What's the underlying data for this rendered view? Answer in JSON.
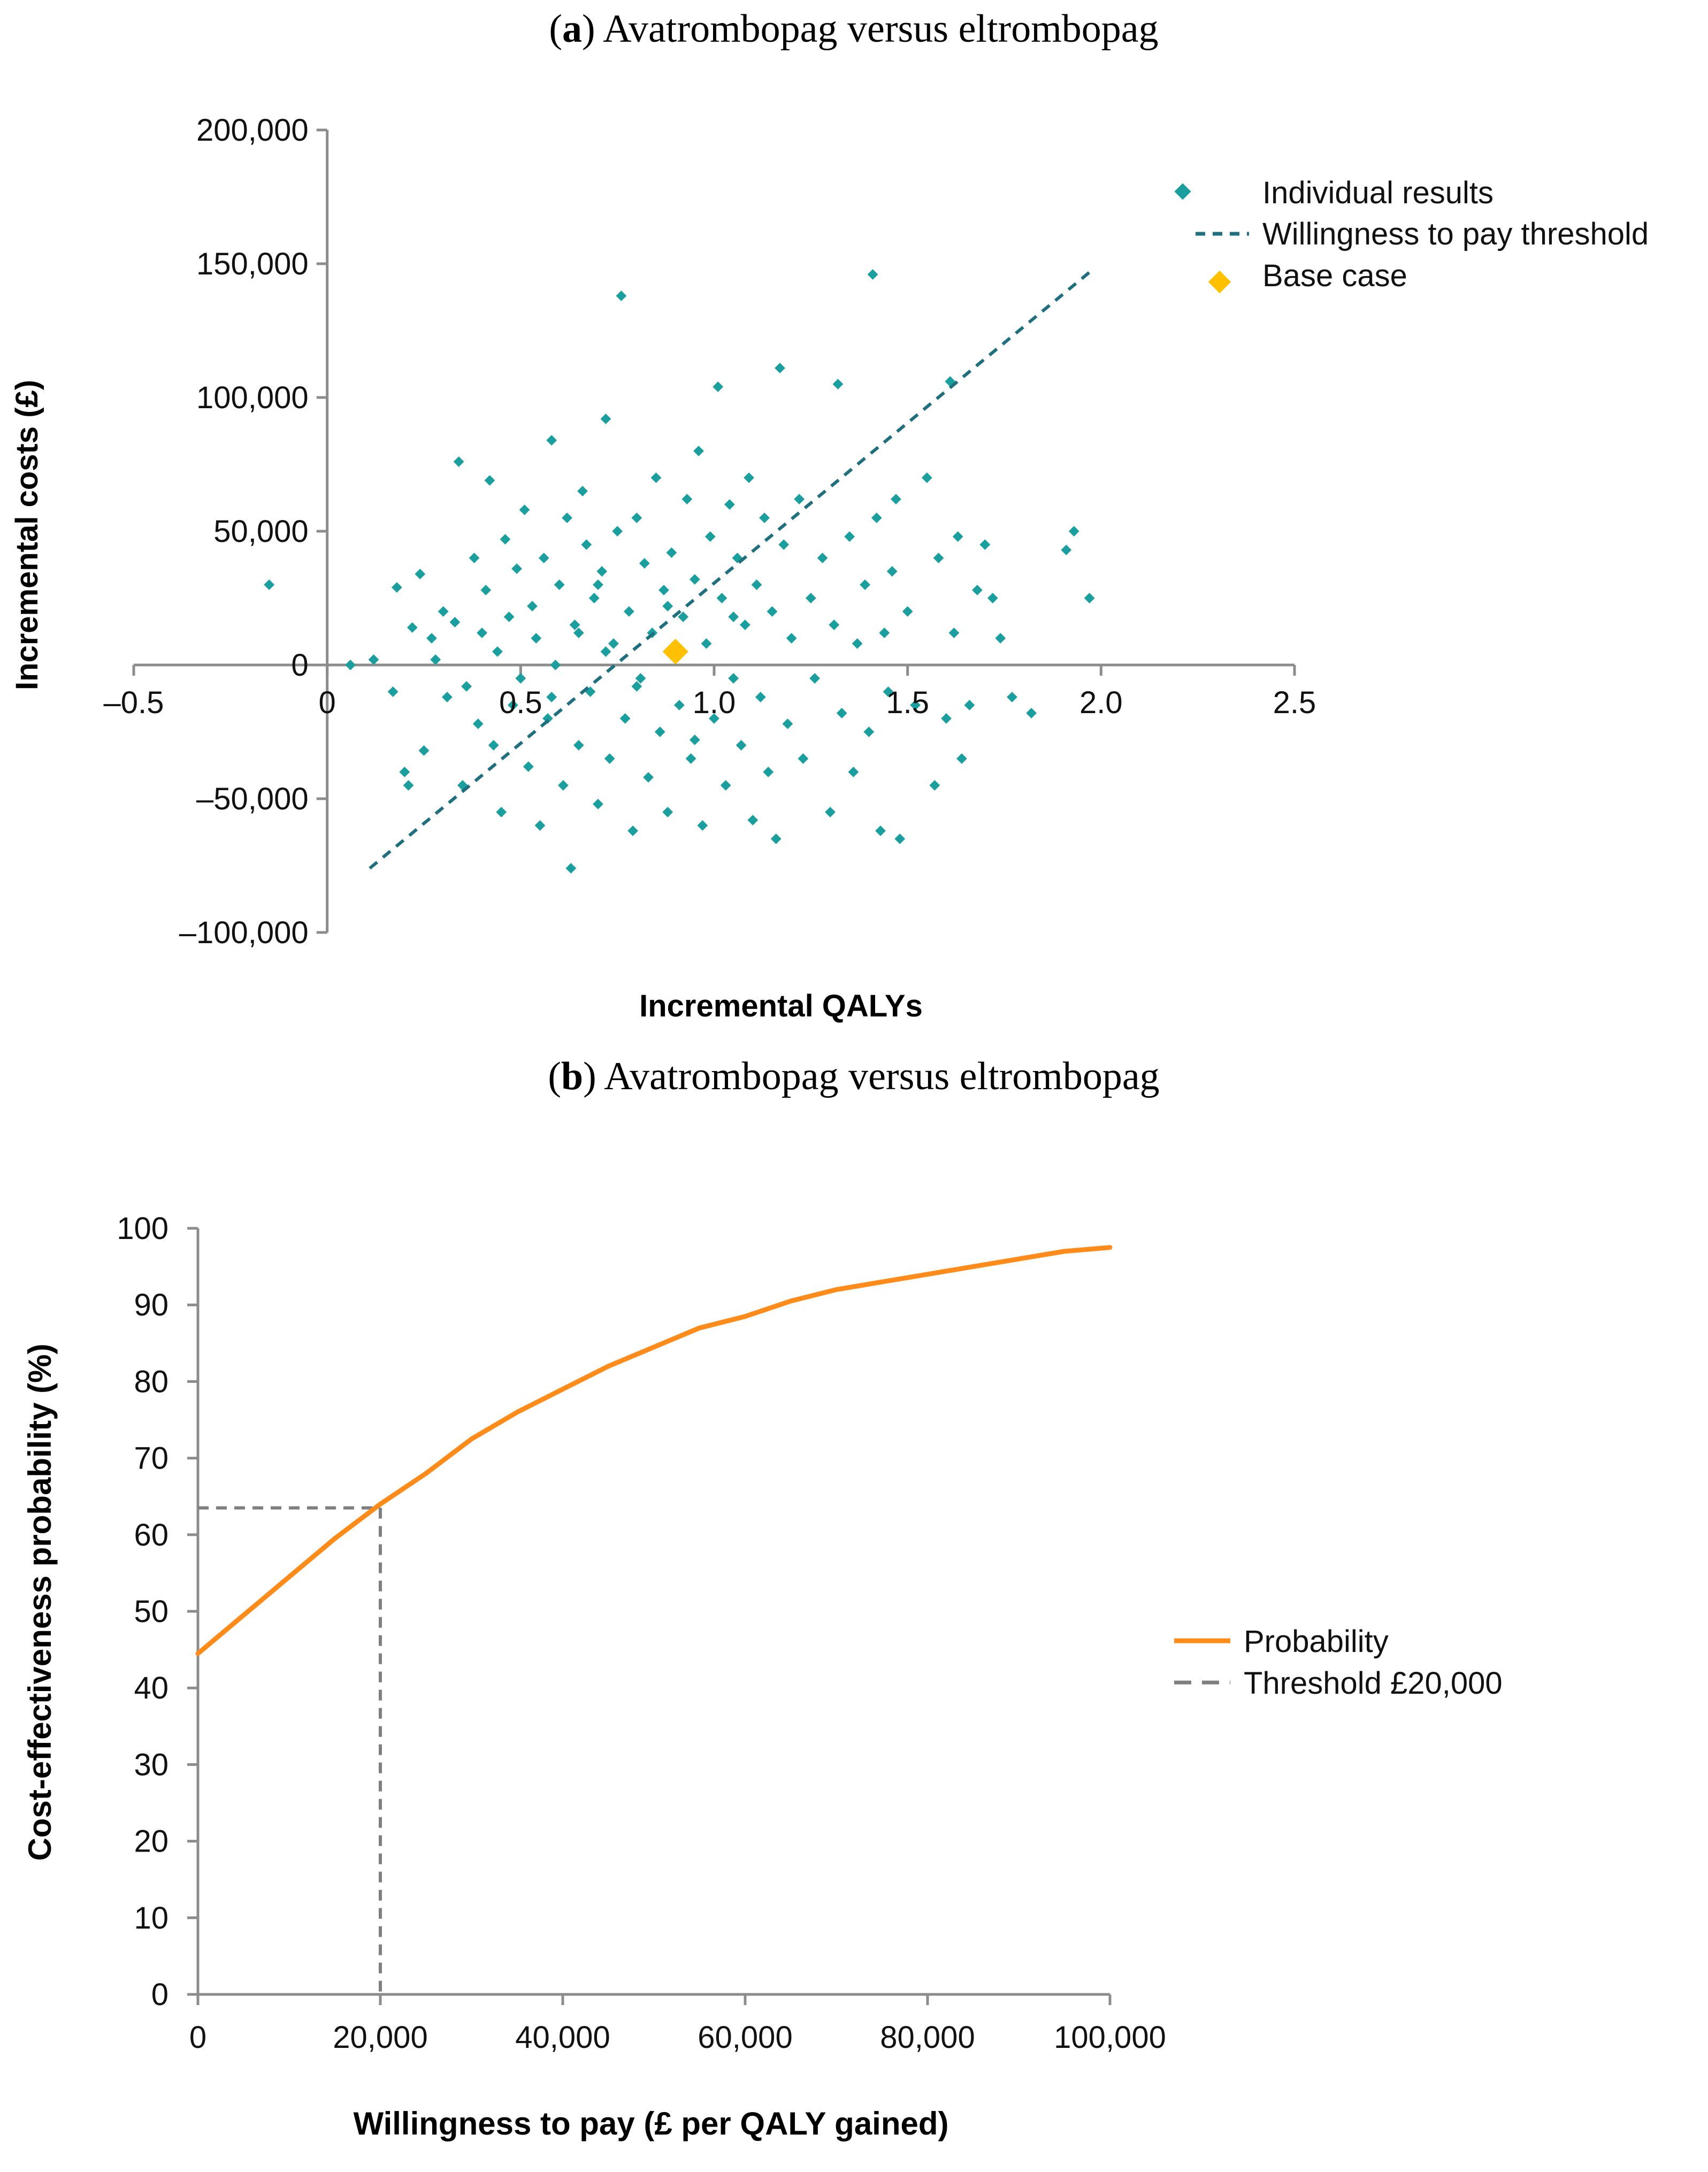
{
  "colors": {
    "scatter": "#1a9e9e",
    "wtp_line": "#1f6f7f",
    "base_case": "#ffc000",
    "probability": "#ff8c1a",
    "threshold": "#7f7f7f",
    "axis": "#8c8c8c"
  },
  "chart_data": [
    {
      "type": "scatter",
      "title_prefix": "(",
      "title_letter": "a",
      "title_rest": ") Avatrombopag versus eltrombopag",
      "xlabel": "Incremental QALYs",
      "ylabel": "Incremental costs (£)",
      "xlim": [
        -0.5,
        2.5
      ],
      "ylim": [
        -100000,
        200000
      ],
      "x_ticks": [
        {
          "value": -0.5,
          "label": "–0.5"
        },
        {
          "value": 0,
          "label": "0"
        },
        {
          "value": 0.5,
          "label": "0.5"
        },
        {
          "value": 1.0,
          "label": "1.0"
        },
        {
          "value": 1.5,
          "label": "1.5"
        },
        {
          "value": 2.0,
          "label": "2.0"
        },
        {
          "value": 2.5,
          "label": "2.5"
        }
      ],
      "y_ticks": [
        {
          "value": -100000,
          "label": "–100,000"
        },
        {
          "value": -50000,
          "label": "–50,000"
        },
        {
          "value": 0,
          "label": "0"
        },
        {
          "value": 50000,
          "label": "50,000"
        },
        {
          "value": 100000,
          "label": "100,000"
        },
        {
          "value": 150000,
          "label": "150,000"
        },
        {
          "value": 200000,
          "label": "200,000"
        }
      ],
      "legend_position": "top-right",
      "legend": [
        "Individual results",
        "Willingness to pay threshold",
        "Base case"
      ],
      "base_case": {
        "x": 0.9,
        "y": 5000
      },
      "wtp_line": {
        "x": [
          0.11,
          1.98
        ],
        "y": [
          -76000,
          148000
        ]
      },
      "points": [
        [
          -0.15,
          30000
        ],
        [
          0.06,
          0
        ],
        [
          0.12,
          2000
        ],
        [
          0.17,
          -10000
        ],
        [
          0.18,
          29000
        ],
        [
          0.2,
          -40000
        ],
        [
          0.21,
          -45000
        ],
        [
          0.22,
          14000
        ],
        [
          0.24,
          34000
        ],
        [
          0.25,
          -32000
        ],
        [
          0.27,
          10000
        ],
        [
          0.28,
          2000
        ],
        [
          0.3,
          20000
        ],
        [
          0.31,
          -12000
        ],
        [
          0.33,
          16000
        ],
        [
          0.34,
          76000
        ],
        [
          0.35,
          -45000
        ],
        [
          0.36,
          -8000
        ],
        [
          0.38,
          40000
        ],
        [
          0.39,
          -22000
        ],
        [
          0.4,
          12000
        ],
        [
          0.41,
          28000
        ],
        [
          0.42,
          69000
        ],
        [
          0.43,
          -30000
        ],
        [
          0.44,
          5000
        ],
        [
          0.45,
          -55000
        ],
        [
          0.46,
          47000
        ],
        [
          0.47,
          18000
        ],
        [
          0.48,
          -15000
        ],
        [
          0.49,
          36000
        ],
        [
          0.5,
          -5000
        ],
        [
          0.51,
          58000
        ],
        [
          0.52,
          -38000
        ],
        [
          0.53,
          22000
        ],
        [
          0.54,
          10000
        ],
        [
          0.55,
          -60000
        ],
        [
          0.56,
          40000
        ],
        [
          0.57,
          -20000
        ],
        [
          0.58,
          84000
        ],
        [
          0.59,
          0
        ],
        [
          0.6,
          30000
        ],
        [
          0.61,
          -45000
        ],
        [
          0.62,
          55000
        ],
        [
          0.63,
          -76000
        ],
        [
          0.64,
          15000
        ],
        [
          0.65,
          -30000
        ],
        [
          0.66,
          65000
        ],
        [
          0.67,
          45000
        ],
        [
          0.68,
          -10000
        ],
        [
          0.69,
          25000
        ],
        [
          0.7,
          -52000
        ],
        [
          0.71,
          35000
        ],
        [
          0.72,
          92000
        ],
        [
          0.73,
          -35000
        ],
        [
          0.74,
          8000
        ],
        [
          0.75,
          50000
        ],
        [
          0.76,
          138000
        ],
        [
          0.77,
          -20000
        ],
        [
          0.78,
          20000
        ],
        [
          0.79,
          -62000
        ],
        [
          0.8,
          55000
        ],
        [
          0.81,
          -5000
        ],
        [
          0.82,
          38000
        ],
        [
          0.83,
          -42000
        ],
        [
          0.84,
          12000
        ],
        [
          0.85,
          70000
        ],
        [
          0.86,
          -25000
        ],
        [
          0.87,
          28000
        ],
        [
          0.88,
          -55000
        ],
        [
          0.89,
          42000
        ],
        [
          0.91,
          -15000
        ],
        [
          0.92,
          18000
        ],
        [
          0.93,
          62000
        ],
        [
          0.94,
          -35000
        ],
        [
          0.95,
          32000
        ],
        [
          0.96,
          80000
        ],
        [
          0.97,
          -60000
        ],
        [
          0.98,
          8000
        ],
        [
          0.99,
          48000
        ],
        [
          1.0,
          -20000
        ],
        [
          1.01,
          104000
        ],
        [
          1.02,
          25000
        ],
        [
          1.03,
          -45000
        ],
        [
          1.04,
          60000
        ],
        [
          1.05,
          -5000
        ],
        [
          1.06,
          40000
        ],
        [
          1.07,
          -30000
        ],
        [
          1.08,
          15000
        ],
        [
          1.09,
          70000
        ],
        [
          1.1,
          -58000
        ],
        [
          1.11,
          30000
        ],
        [
          1.12,
          -12000
        ],
        [
          1.13,
          55000
        ],
        [
          1.14,
          -40000
        ],
        [
          1.15,
          20000
        ],
        [
          1.16,
          -65000
        ],
        [
          1.17,
          111000
        ],
        [
          1.18,
          45000
        ],
        [
          1.19,
          -22000
        ],
        [
          1.2,
          10000
        ],
        [
          1.22,
          62000
        ],
        [
          1.23,
          -35000
        ],
        [
          1.25,
          25000
        ],
        [
          1.26,
          -5000
        ],
        [
          1.28,
          40000
        ],
        [
          1.3,
          -55000
        ],
        [
          1.31,
          15000
        ],
        [
          1.32,
          105000
        ],
        [
          1.33,
          -18000
        ],
        [
          1.35,
          48000
        ],
        [
          1.36,
          -40000
        ],
        [
          1.37,
          8000
        ],
        [
          1.39,
          30000
        ],
        [
          1.4,
          -25000
        ],
        [
          1.41,
          146000
        ],
        [
          1.42,
          55000
        ],
        [
          1.43,
          -62000
        ],
        [
          1.44,
          12000
        ],
        [
          1.45,
          -10000
        ],
        [
          1.46,
          35000
        ],
        [
          1.47,
          62000
        ],
        [
          1.48,
          -65000
        ],
        [
          1.5,
          20000
        ],
        [
          1.52,
          -15000
        ],
        [
          1.55,
          70000
        ],
        [
          1.57,
          -45000
        ],
        [
          1.58,
          40000
        ],
        [
          1.6,
          -20000
        ],
        [
          1.61,
          106000
        ],
        [
          1.62,
          12000
        ],
        [
          1.63,
          48000
        ],
        [
          1.64,
          -35000
        ],
        [
          1.66,
          -15000
        ],
        [
          1.68,
          28000
        ],
        [
          1.7,
          45000
        ],
        [
          1.72,
          25000
        ],
        [
          1.74,
          10000
        ],
        [
          1.77,
          -12000
        ],
        [
          1.82,
          -18000
        ],
        [
          1.91,
          43000
        ],
        [
          1.93,
          50000
        ],
        [
          1.97,
          25000
        ],
        [
          0.72,
          5000
        ],
        [
          0.8,
          -8000
        ],
        [
          0.65,
          12000
        ],
        [
          0.88,
          22000
        ],
        [
          0.95,
          -28000
        ],
        [
          1.05,
          18000
        ],
        [
          0.58,
          -12000
        ],
        [
          0.7,
          30000
        ]
      ]
    },
    {
      "type": "line",
      "title_prefix": "(",
      "title_letter": "b",
      "title_rest": ") Avatrombopag versus eltrombopag",
      "xlabel": "Willingness to pay (£ per QALY gained)",
      "ylabel": "Cost-effectiveness probability (%)",
      "xlim": [
        0,
        100000
      ],
      "ylim": [
        0,
        100
      ],
      "x_ticks": [
        {
          "value": 0,
          "label": "0"
        },
        {
          "value": 20000,
          "label": "20,000"
        },
        {
          "value": 40000,
          "label": "40,000"
        },
        {
          "value": 60000,
          "label": "60,000"
        },
        {
          "value": 80000,
          "label": "80,000"
        },
        {
          "value": 100000,
          "label": "100,000"
        }
      ],
      "y_ticks": [
        {
          "value": 0,
          "label": "0"
        },
        {
          "value": 10,
          "label": "10"
        },
        {
          "value": 20,
          "label": "20"
        },
        {
          "value": 30,
          "label": "30"
        },
        {
          "value": 40,
          "label": "40"
        },
        {
          "value": 50,
          "label": "50"
        },
        {
          "value": 60,
          "label": "60"
        },
        {
          "value": 70,
          "label": "70"
        },
        {
          "value": 80,
          "label": "80"
        },
        {
          "value": 90,
          "label": "90"
        },
        {
          "value": 100,
          "label": "100"
        }
      ],
      "legend_position": "right",
      "legend": [
        "Probability",
        "Threshold £20,000"
      ],
      "threshold": {
        "x": 20000,
        "y": 63.5
      },
      "series": [
        {
          "name": "Probability",
          "x": [
            0,
            5000,
            10000,
            15000,
            20000,
            25000,
            30000,
            35000,
            40000,
            45000,
            50000,
            55000,
            60000,
            65000,
            70000,
            75000,
            80000,
            85000,
            90000,
            95000,
            100000
          ],
          "y": [
            44.5,
            49.5,
            54.5,
            59.5,
            64,
            68,
            72.5,
            76,
            79,
            82,
            84.5,
            87,
            88.5,
            90.5,
            92,
            93,
            94,
            95,
            96,
            97,
            97.5
          ]
        }
      ]
    }
  ]
}
